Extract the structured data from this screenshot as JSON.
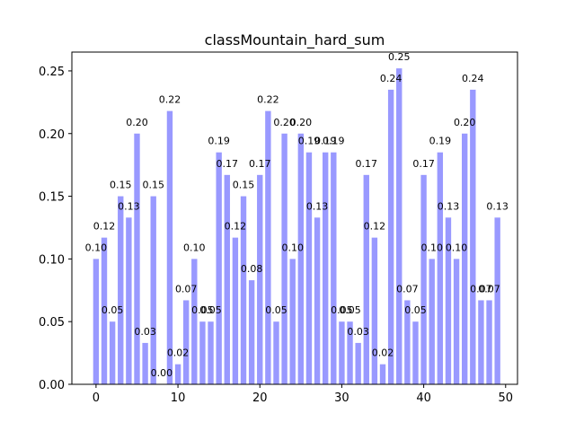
{
  "chart_data": {
    "type": "bar",
    "title": "classMountain_hard_sum",
    "xlabel": "",
    "ylabel": "",
    "x": [
      0,
      1,
      2,
      3,
      4,
      5,
      6,
      7,
      8,
      9,
      10,
      11,
      12,
      13,
      14,
      15,
      16,
      17,
      18,
      19,
      20,
      21,
      22,
      23,
      24,
      25,
      26,
      27,
      28,
      29,
      30,
      31,
      32,
      33,
      34,
      35,
      36,
      37,
      38,
      39,
      40,
      41,
      42,
      43,
      44,
      45,
      46,
      47,
      48,
      49
    ],
    "values": [
      0.1,
      0.117,
      0.05,
      0.15,
      0.133,
      0.2,
      0.033,
      0.15,
      0.0,
      0.218,
      0.016,
      0.067,
      0.1,
      0.05,
      0.05,
      0.185,
      0.167,
      0.117,
      0.15,
      0.083,
      0.167,
      0.218,
      0.05,
      0.2,
      0.1,
      0.2,
      0.185,
      0.133,
      0.185,
      0.185,
      0.05,
      0.05,
      0.033,
      0.167,
      0.117,
      0.016,
      0.235,
      0.252,
      0.067,
      0.05,
      0.167,
      0.1,
      0.185,
      0.133,
      0.1,
      0.2,
      0.235,
      0.067,
      0.067,
      0.133
    ],
    "labels": [
      "0.10",
      "0.12",
      "0.05",
      "0.15",
      "0.13",
      "0.20",
      "0.03",
      "0.15",
      "0.00",
      "0.22",
      "0.02",
      "0.07",
      "0.10",
      "0.05",
      "0.05",
      "0.19",
      "0.17",
      "0.12",
      "0.15",
      "0.08",
      "0.17",
      "0.22",
      "0.05",
      "0.20",
      "0.10",
      "0.20",
      "0.19",
      "0.13",
      "0.19",
      "0.19",
      "0.05",
      "0.05",
      "0.03",
      "0.17",
      "0.12",
      "0.02",
      "0.24",
      "0.25",
      "0.07",
      "0.05",
      "0.17",
      "0.10",
      "0.19",
      "0.13",
      "0.10",
      "0.20",
      "0.24",
      "0.07",
      "0.07",
      "0.13"
    ],
    "xlim": [
      -2.95,
      51.45
    ],
    "ylim": [
      0,
      0.265
    ],
    "xticks": [
      0,
      10,
      20,
      30,
      40,
      50
    ],
    "xtick_labels": [
      "0",
      "10",
      "20",
      "30",
      "40",
      "50"
    ],
    "yticks": [
      0,
      0.05,
      0.1,
      0.15,
      0.2,
      0.25
    ],
    "ytick_labels": [
      "0.00",
      "0.05",
      "0.10",
      "0.15",
      "0.20",
      "0.25"
    ],
    "bar_color": "#9999ff",
    "grid": false,
    "legend": "none"
  }
}
